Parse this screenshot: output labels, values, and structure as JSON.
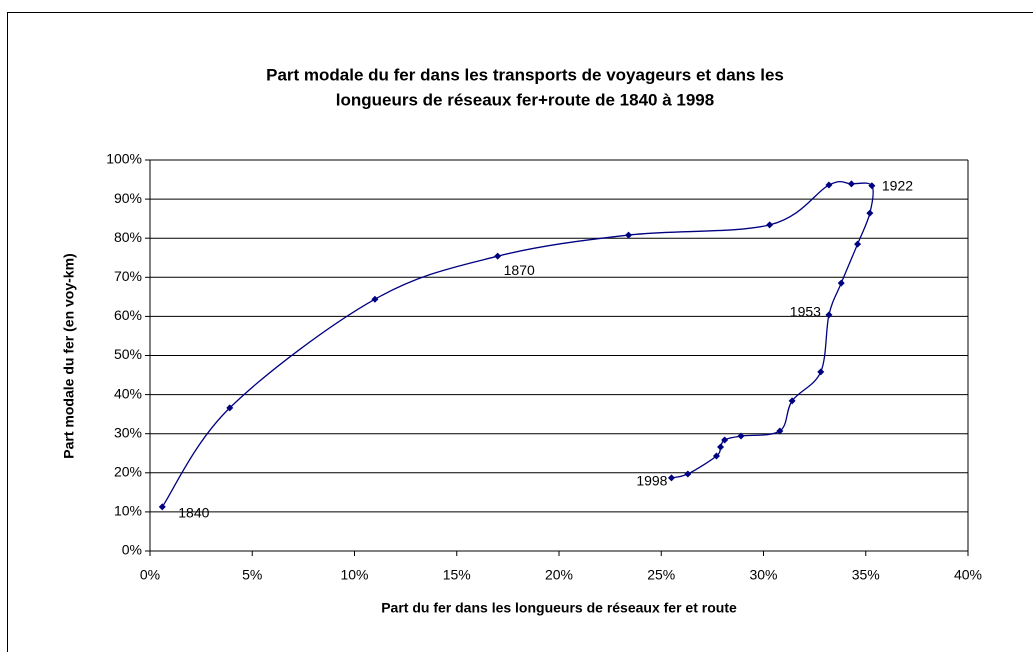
{
  "chart_data": {
    "type": "scatter",
    "title": [
      "Part modale du fer dans les transports de voyageurs et dans les",
      "longueurs de réseaux fer+route de 1840 à 1998"
    ],
    "x_label": "Part du fer dans les longueurs de réseaux fer et route",
    "y_label": "Part modale du fer (en voy-km)",
    "series": [
      {
        "color": "#000080",
        "x": [
          0.6,
          3.9,
          11.0,
          17.0,
          23.4,
          30.3,
          33.2,
          34.3,
          35.3,
          35.2,
          34.6,
          33.8,
          33.2,
          32.8,
          31.4,
          30.8,
          28.9,
          28.1,
          27.9,
          27.7,
          26.3,
          25.5
        ],
        "values": [
          11.3,
          36.6,
          64.4,
          75.4,
          80.8,
          83.4,
          93.6,
          93.9,
          93.4,
          86.4,
          78.5,
          68.5,
          60.4,
          45.8,
          38.4,
          30.7,
          29.4,
          28.4,
          26.6,
          24.3,
          19.7,
          18.7
        ]
      }
    ],
    "annotations": [
      "1840",
      "1870",
      "1922",
      "1953",
      "1998"
    ],
    "xlim": [
      0,
      40
    ],
    "ylim": [
      0,
      100
    ],
    "xticks": [
      {
        "value": 0,
        "label": "0%"
      },
      {
        "value": 5,
        "label": "5%"
      },
      {
        "value": 10,
        "label": "10%"
      },
      {
        "value": 15,
        "label": "15%"
      },
      {
        "value": 20,
        "label": "20%"
      },
      {
        "value": 25,
        "label": "25%"
      },
      {
        "value": 30,
        "label": "30%"
      },
      {
        "value": 35,
        "label": "35%"
      },
      {
        "value": 40,
        "label": "40%"
      }
    ],
    "yticks": [
      {
        "value": 0,
        "label": "0%"
      },
      {
        "value": 10,
        "label": "10%"
      },
      {
        "value": 20,
        "label": "20%"
      },
      {
        "value": 30,
        "label": "30%"
      },
      {
        "value": 40,
        "label": "40%"
      },
      {
        "value": 50,
        "label": "50%"
      },
      {
        "value": 60,
        "label": "60%"
      },
      {
        "value": 70,
        "label": "70%"
      },
      {
        "value": 80,
        "label": "80%"
      },
      {
        "value": 90,
        "label": "90%"
      },
      {
        "value": 100,
        "label": "100%"
      }
    ],
    "grid": true
  }
}
